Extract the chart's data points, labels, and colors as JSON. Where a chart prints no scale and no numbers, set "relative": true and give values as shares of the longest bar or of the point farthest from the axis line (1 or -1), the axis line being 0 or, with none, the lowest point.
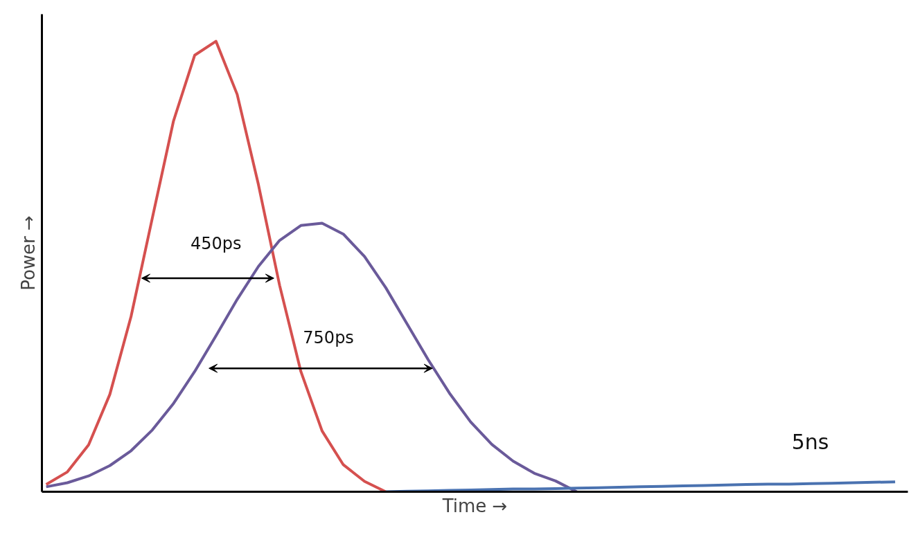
{
  "chart_data": {
    "type": "line",
    "relative": true,
    "xlabel": "Time →",
    "ylabel": "Power →",
    "tick_labels": false,
    "marker": "none",
    "line_style": "solid",
    "categories": [
      null,
      null,
      null,
      null,
      null,
      null,
      null,
      null,
      null,
      null,
      null,
      null,
      null,
      null,
      null,
      null,
      null,
      null,
      null,
      null,
      null,
      null,
      null,
      null,
      null,
      null,
      null,
      null,
      null,
      null,
      null,
      null,
      null,
      null,
      null,
      null,
      null,
      null,
      null,
      null,
      null
    ],
    "series": [
      {
        "color": "#d5504f",
        "values": [
          0.016,
          0.044,
          0.104,
          0.216,
          0.389,
          0.607,
          0.823,
          0.969,
          1.0,
          0.882,
          0.682,
          0.458,
          0.267,
          0.135,
          0.06,
          0.023,
          0.0,
          null,
          null,
          null,
          null,
          null,
          null,
          null,
          null,
          null,
          null,
          null,
          null,
          null,
          null,
          null,
          null,
          null,
          null,
          null,
          null,
          null,
          null,
          null,
          null
        ]
      },
      {
        "color": "#6a5a9a",
        "values": [
          0.011,
          0.02,
          0.035,
          0.058,
          0.091,
          0.137,
          0.196,
          0.267,
          0.346,
          0.427,
          0.5,
          0.558,
          0.591,
          0.596,
          0.572,
          0.522,
          0.453,
          0.373,
          0.293,
          0.219,
          0.155,
          0.105,
          0.068,
          0.041,
          0.024,
          0.0,
          null,
          null,
          null,
          null,
          null,
          null,
          null,
          null,
          null,
          null,
          null,
          null,
          null,
          null,
          null
        ]
      },
      {
        "color": "#4a72b0",
        "values": [
          null,
          null,
          null,
          null,
          null,
          null,
          null,
          null,
          null,
          null,
          null,
          null,
          null,
          null,
          null,
          null,
          0.0,
          0.001,
          0.002,
          0.003,
          0.004,
          0.005,
          0.006,
          0.006,
          0.007,
          0.008,
          0.009,
          0.01,
          0.011,
          0.012,
          0.013,
          0.014,
          0.015,
          0.016,
          0.017,
          0.017,
          0.018,
          0.019,
          0.02,
          0.021,
          0.022
        ]
      }
    ],
    "annotations": [
      "450ps",
      "750ps",
      "5ns"
    ]
  }
}
